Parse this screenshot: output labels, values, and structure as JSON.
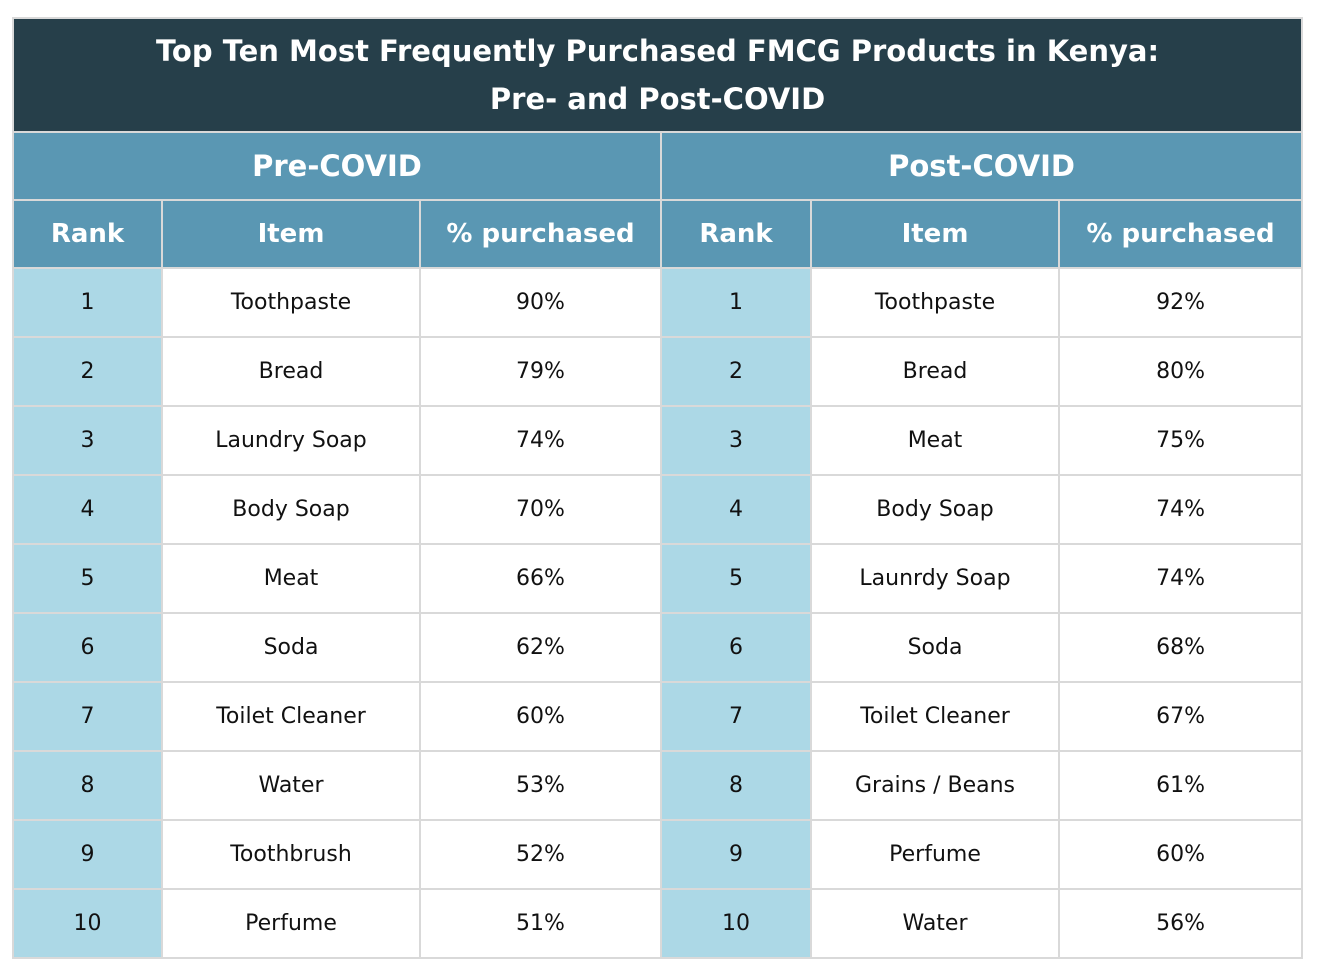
{
  "title_line1": "Top Ten Most Frequently Purchased FMCG Products in Kenya:",
  "title_line2": "Pre- and Post-COVID",
  "groups": [
    "Pre-COVID",
    "Post-COVID"
  ],
  "columns": [
    "Rank",
    "Item",
    "% purchased",
    "Rank",
    "Item",
    "% purchased"
  ],
  "colors": {
    "title_bg": "#263f4a",
    "header_bg": "#5a97b3",
    "rank_bg": "#acd8e6"
  },
  "chart_data": {
    "type": "table",
    "title": "Top Ten Most Frequently Purchased FMCG Products in Kenya: Pre- and Post-COVID",
    "pre_covid": [
      {
        "rank": "1",
        "item": "Toothpaste",
        "pct": "90%"
      },
      {
        "rank": "2",
        "item": "Bread",
        "pct": "79%"
      },
      {
        "rank": "3",
        "item": "Laundry Soap",
        "pct": "74%"
      },
      {
        "rank": "4",
        "item": "Body Soap",
        "pct": "70%"
      },
      {
        "rank": "5",
        "item": "Meat",
        "pct": "66%"
      },
      {
        "rank": "6",
        "item": "Soda",
        "pct": "62%"
      },
      {
        "rank": "7",
        "item": "Toilet Cleaner",
        "pct": "60%"
      },
      {
        "rank": "8",
        "item": "Water",
        "pct": "53%"
      },
      {
        "rank": "9",
        "item": "Toothbrush",
        "pct": "52%"
      },
      {
        "rank": "10",
        "item": "Perfume",
        "pct": "51%"
      }
    ],
    "post_covid": [
      {
        "rank": "1",
        "item": "Toothpaste",
        "pct": "92%"
      },
      {
        "rank": "2",
        "item": "Bread",
        "pct": "80%"
      },
      {
        "rank": "3",
        "item": "Meat",
        "pct": "75%"
      },
      {
        "rank": "4",
        "item": "Body Soap",
        "pct": "74%"
      },
      {
        "rank": "5",
        "item": "Launrdy Soap",
        "pct": "74%"
      },
      {
        "rank": "6",
        "item": "Soda",
        "pct": "68%"
      },
      {
        "rank": "7",
        "item": "Toilet Cleaner",
        "pct": "67%"
      },
      {
        "rank": "8",
        "item": "Grains / Beans",
        "pct": "61%"
      },
      {
        "rank": "9",
        "item": "Perfume",
        "pct": "60%"
      },
      {
        "rank": "10",
        "item": "Water",
        "pct": "56%"
      }
    ]
  }
}
